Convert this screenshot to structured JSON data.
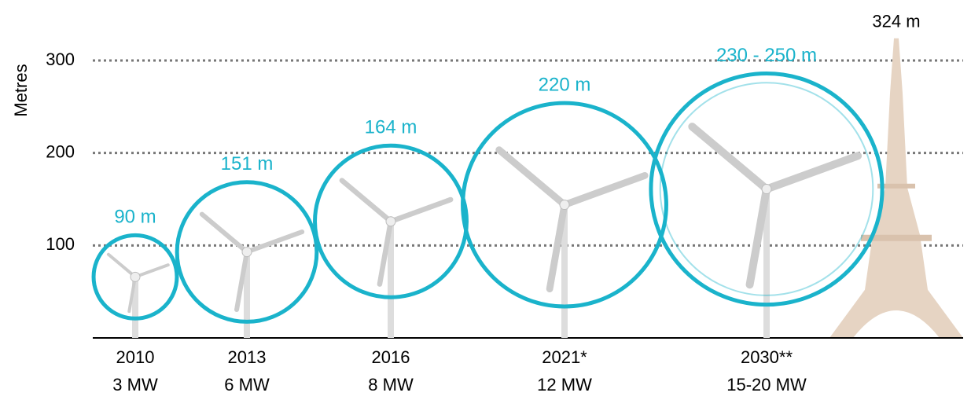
{
  "chart_data": {
    "type": "turbine",
    "y_label": "Metres",
    "ylim": [
      0,
      300
    ],
    "yticks": [
      100,
      200,
      300
    ],
    "grid": true,
    "circle_color": "#1ab3cb",
    "turbines": [
      {
        "year": "2010",
        "capacity": "3 MW",
        "diameter": [
          90
        ],
        "diameter_label": "90 m",
        "hub": 66
      },
      {
        "year": "2013",
        "capacity": "6 MW",
        "diameter": [
          151
        ],
        "diameter_label": "151 m",
        "hub": 93
      },
      {
        "year": "2016",
        "capacity": "8 MW",
        "diameter": [
          164
        ],
        "diameter_label": "164 m",
        "hub": 126
      },
      {
        "year": "2021*",
        "capacity": "12 MW",
        "diameter": [
          220
        ],
        "diameter_label": "220 m",
        "hub": 144
      },
      {
        "year": "2030**",
        "capacity": "15-20 MW",
        "diameter": [
          230,
          250
        ],
        "diameter_label": "230 - 250 m",
        "hub": 161
      }
    ],
    "tower": {
      "height": 324,
      "label": "324 m",
      "color": "#e6d4c3"
    }
  }
}
